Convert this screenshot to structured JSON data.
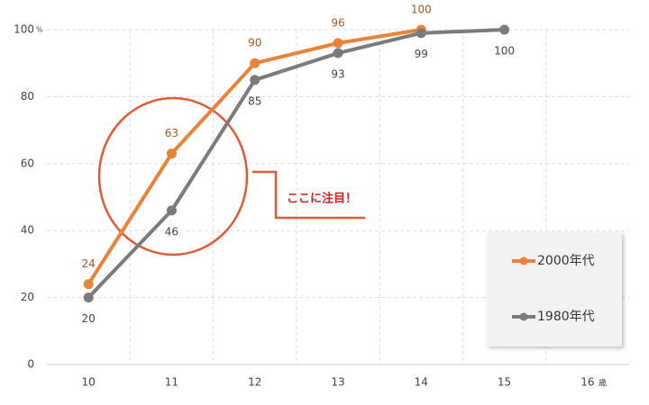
{
  "chart_data": {
    "type": "line",
    "categories": [
      "10",
      "11",
      "12",
      "13",
      "14",
      "15",
      "16"
    ],
    "x_unit": "歳",
    "y_unit": "%",
    "ylim": [
      0,
      100
    ],
    "yticks": [
      0,
      20,
      40,
      60,
      80,
      100
    ],
    "grid": true,
    "annotation": "ここに注目！",
    "legend": "lower right",
    "series": [
      {
        "name": "2000年代",
        "color": "#e8833a",
        "label_color": "#9a5a22",
        "label_side": "above",
        "values": [
          24,
          63,
          90,
          96,
          100,
          null,
          null
        ]
      },
      {
        "name": "1980年代",
        "color": "#7b7b7b",
        "label_color": "#444444",
        "label_side": "below",
        "values": [
          20,
          46,
          85,
          93,
          99,
          100,
          null
        ]
      }
    ]
  }
}
